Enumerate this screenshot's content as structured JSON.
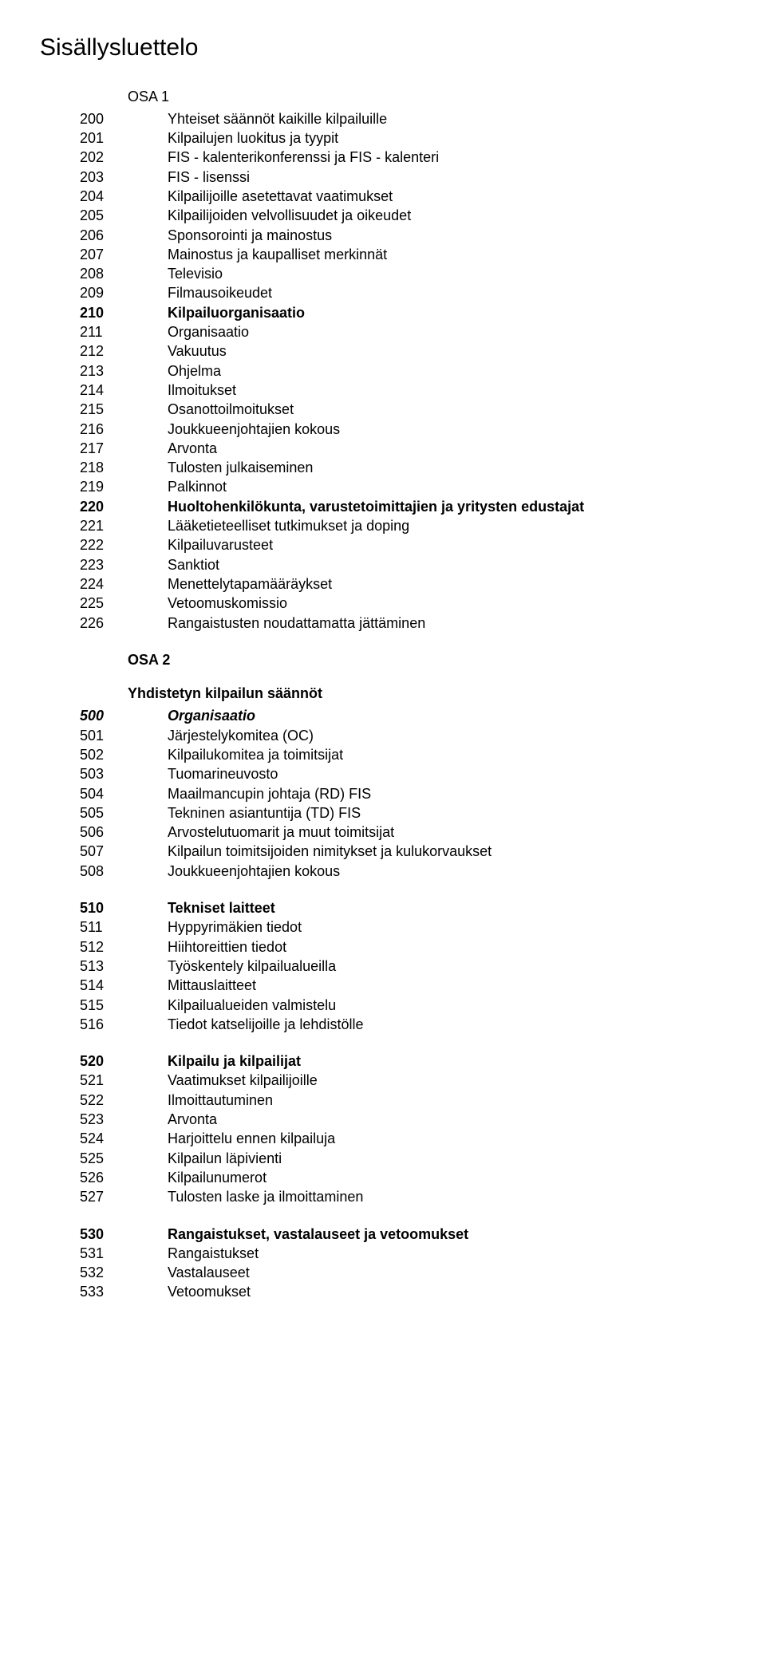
{
  "title": "Sisällysluettelo",
  "osa1_label": "OSA 1",
  "osa2_label": "OSA 2",
  "sub_label": "Yhdistetyn kilpailun säännöt",
  "block1": [
    {
      "n": "200",
      "t": "Yhteiset säännöt kaikille kilpailuille",
      "b": false
    },
    {
      "n": "201",
      "t": "Kilpailujen luokitus ja tyypit",
      "b": false
    },
    {
      "n": "202",
      "t": " FIS - kalenterikonferenssi ja FIS - kalenteri",
      "b": false
    },
    {
      "n": "203",
      "t": "FIS - lisenssi",
      "b": false
    },
    {
      "n": "204",
      "t": "Kilpailijoille asetettavat vaatimukset",
      "b": false
    },
    {
      "n": "205",
      "t": "Kilpailijoiden velvollisuudet ja oikeudet",
      "b": false
    },
    {
      "n": "206",
      "t": "Sponsorointi ja mainostus",
      "b": false
    },
    {
      "n": "207",
      "t": "Mainostus ja kaupalliset merkinnät",
      "b": false
    },
    {
      "n": "208",
      "t": "Televisio",
      "b": false
    },
    {
      "n": "209",
      "t": "Filmausoikeudet",
      "b": false
    },
    {
      "n": "210",
      "t": "Kilpailuorganisaatio",
      "b": true
    },
    {
      "n": "211",
      "t": "Organisaatio",
      "b": false
    },
    {
      "n": "212",
      "t": "Vakuutus",
      "b": false
    },
    {
      "n": "213",
      "t": "Ohjelma",
      "b": false
    },
    {
      "n": "214",
      "t": "Ilmoitukset",
      "b": false
    },
    {
      "n": "215",
      "t": "Osanottoilmoitukset",
      "b": false
    },
    {
      "n": "216",
      "t": "Joukkueenjohtajien kokous",
      "b": false
    },
    {
      "n": "217",
      "t": "Arvonta",
      "b": false
    },
    {
      "n": "218",
      "t": "Tulosten julkaiseminen",
      "b": false
    },
    {
      "n": "219",
      "t": "Palkinnot",
      "b": false
    },
    {
      "n": "220",
      "t": "Huoltohenkilökunta, varustetoimittajien ja yritysten edustajat",
      "b": true
    },
    {
      "n": "221",
      "t": "Lääketieteelliset tutkimukset ja doping",
      "b": false
    },
    {
      "n": "222",
      "t": " Kilpailuvarusteet",
      "b": false
    },
    {
      "n": "223",
      "t": "Sanktiot",
      "b": false
    },
    {
      "n": "224",
      "t": "Menettelytapamääräykset",
      "b": false
    },
    {
      "n": "225",
      "t": "Vetoomuskomissio",
      "b": false
    },
    {
      "n": "226",
      "t": "Rangaistusten noudattamatta jättäminen",
      "b": false
    }
  ],
  "block2": [
    {
      "n": "500",
      "t": "Organisaatio",
      "b": true,
      "i": true
    },
    {
      "n": "501",
      "t": "Järjestelykomitea (OC)",
      "b": false
    },
    {
      "n": "502",
      "t": "Kilpailukomitea ja toimitsijat",
      "b": false
    },
    {
      "n": "503",
      "t": "Tuomarineuvosto",
      "b": false
    },
    {
      "n": "504",
      "t": "Maailmancupin johtaja (RD) FIS",
      "b": false
    },
    {
      "n": "505",
      "t": "Tekninen asiantuntija (TD) FIS",
      "b": false
    },
    {
      "n": "506",
      "t": "Arvostelutuomarit ja muut toimitsijat",
      "b": false
    },
    {
      "n": "507",
      "t": "Kilpailun toimitsijoiden nimitykset ja kulukorvaukset",
      "b": false
    },
    {
      "n": "508",
      "t": "Joukkueenjohtajien kokous",
      "b": false
    }
  ],
  "block3": [
    {
      "n": "510",
      "t": "Tekniset laitteet",
      "b": true
    },
    {
      "n": "511",
      "t": "Hyppyrimäkien tiedot",
      "b": false
    },
    {
      "n": "512",
      "t": "Hiihtoreittien tiedot",
      "b": false
    },
    {
      "n": "513",
      "t": "Työskentely kilpailualueilla",
      "b": false
    },
    {
      "n": "514",
      "t": "Mittauslaitteet",
      "b": false
    },
    {
      "n": "515",
      "t": "Kilpailualueiden valmistelu",
      "b": false
    },
    {
      "n": "516",
      "t": "Tiedot katselijoille ja lehdistölle",
      "b": false
    }
  ],
  "block4": [
    {
      "n": "520",
      "t": "Kilpailu ja kilpailijat",
      "b": true
    },
    {
      "n": "521",
      "t": "Vaatimukset kilpailijoille",
      "b": false
    },
    {
      "n": "522",
      "t": "Ilmoittautuminen",
      "b": false
    },
    {
      "n": "523",
      "t": "Arvonta",
      "b": false
    },
    {
      "n": "524",
      "t": "Harjoittelu ennen kilpailuja",
      "b": false
    },
    {
      "n": "525",
      "t": "Kilpailun läpivienti",
      "b": false
    },
    {
      "n": "526",
      "t": "Kilpailunumerot",
      "b": false
    },
    {
      "n": "527",
      "t": "Tulosten laske ja ilmoittaminen",
      "b": false
    }
  ],
  "block5": [
    {
      "n": "530",
      "t": "Rangaistukset, vastalauseet ja vetoomukset",
      "b": true
    },
    {
      "n": "531",
      "t": "Rangaistukset",
      "b": false
    },
    {
      "n": "532",
      "t": "Vastalauseet",
      "b": false
    },
    {
      "n": "533",
      "t": "Vetoomukset",
      "b": false
    }
  ]
}
